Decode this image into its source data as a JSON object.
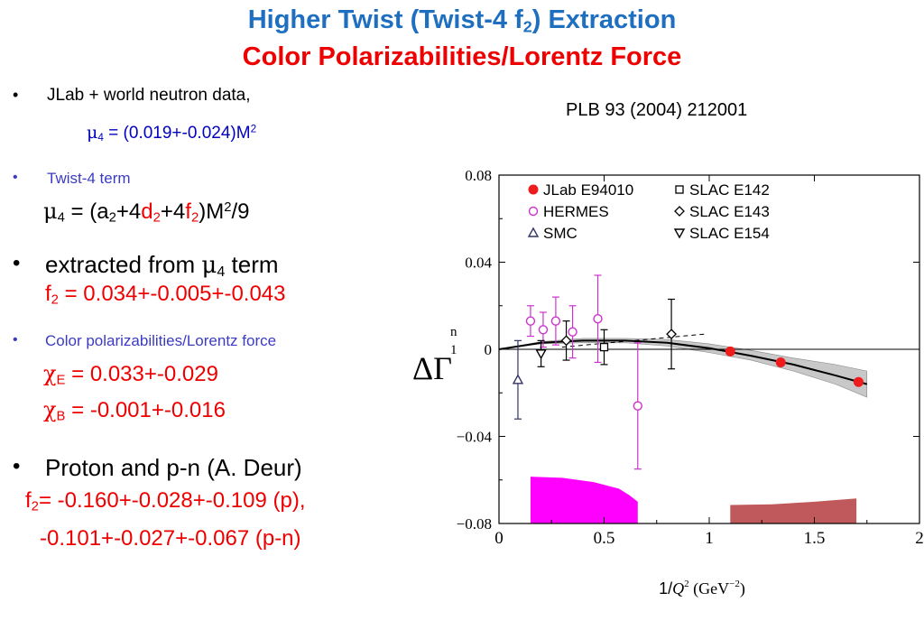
{
  "title": {
    "line1_pre": "Higher Twist (Twist-4 f",
    "line1_sub": "2",
    "line1_post": ") Extraction",
    "line2": "Color Polarizabilities/Lorentz Force"
  },
  "reference": "PLB 93 (2004) 212001",
  "bullets": {
    "b1": {
      "text": "JLab + world neutron data,",
      "mu_symbol": "μ",
      "mu_sub": "4",
      "mu_rest": " = (0.019+-0.024)M",
      "mu_sup": "2"
    },
    "b2": {
      "text": "Twist-4 term",
      "f_mu": "μ",
      "f_mu_sub": "4",
      "f_eq": " = (a",
      "f_a_sub": "2",
      "f_plus4": "+4",
      "f_d": "d",
      "f_d_sub": "2",
      "f_plus4b": "+4",
      "f_f": "f",
      "f_f_sub": "2",
      "f_close": ")M",
      "f_m_sup": "2",
      "f_div": "/9"
    },
    "b3": {
      "text_pre": "extracted from ",
      "mu": "μ",
      "mu_sub": "4",
      "text_post": " term",
      "f2_pre": "f",
      "f2_sub": "2",
      "f2_val": " = 0.034+-0.005+-0.043"
    },
    "b4": {
      "text": "Color polarizabilities/Lorentz force",
      "chiE_sym": "χ",
      "chiE_sub": "E",
      "chiE_val": " = 0.033+-0.029",
      "chiB_sym": "χ",
      "chiB_sub": "B",
      "chiB_val": " = -0.001+-0.016"
    },
    "b5": {
      "text": "Proton and p-n (A. Deur)",
      "f2_pre": "f",
      "f2_sub": "2",
      "f2_val": "= -0.160+-0.028+-0.109 (p),",
      "line2": "-0.101+-0.027+-0.067 (p-n)"
    }
  },
  "bullet_char": "•",
  "chart_data": {
    "type": "scatter",
    "xlabel_pre": "1/",
    "xlabel_q": "Q",
    "xlabel_q_sup": "2",
    "xlabel_unit": " (GeV",
    "xlabel_unit_sup": "−2",
    "xlabel_close": ")",
    "ylabel": "ΔΓ",
    "ylabel_sup": "n",
    "ylabel_sub": "1",
    "xlim": [
      0,
      2
    ],
    "ylim": [
      -0.08,
      0.08
    ],
    "xticks": [
      0,
      0.5,
      1,
      1.5,
      2
    ],
    "xtick_labels": [
      "0",
      "0.5",
      "1",
      "1.5",
      "2"
    ],
    "yticks": [
      0.08,
      0.04,
      0,
      -0.04,
      -0.08
    ],
    "ytick_labels": [
      "0.08",
      "0.04",
      "0",
      "−0.04",
      "−0.08"
    ],
    "legend_placement": "top-left",
    "series": [
      {
        "name": "JLab E94010",
        "marker": "filled-circle",
        "color": "#ee1c1c",
        "points": [
          [
            1.1,
            -0.001,
            0
          ],
          [
            1.34,
            -0.006,
            0
          ],
          [
            1.71,
            -0.015,
            0
          ]
        ]
      },
      {
        "name": "HERMES",
        "marker": "open-circle",
        "color": "#cc33cc",
        "points": [
          [
            0.15,
            0.013,
            0.007
          ],
          [
            0.21,
            0.009,
            0.008
          ],
          [
            0.27,
            0.013,
            0.011
          ],
          [
            0.35,
            0.008,
            0.012
          ],
          [
            0.47,
            0.014,
            0.02
          ],
          [
            0.66,
            -0.026,
            0.029
          ]
        ]
      },
      {
        "name": "SMC",
        "marker": "open-triangle-up",
        "color": "#333366",
        "points": [
          [
            0.09,
            -0.014,
            0.018
          ]
        ]
      },
      {
        "name": "SLAC E142",
        "marker": "open-square",
        "color": "#000000",
        "points": [
          [
            0.5,
            0.001,
            0.008
          ]
        ]
      },
      {
        "name": "SLAC E143",
        "marker": "open-diamond",
        "color": "#000000",
        "points": [
          [
            0.32,
            0.004,
            0.009
          ],
          [
            0.82,
            0.007,
            0.016
          ]
        ]
      },
      {
        "name": "SLAC E154",
        "marker": "open-triangle-down",
        "color": "#000000",
        "points": [
          [
            0.2,
            -0.002,
            0.006
          ]
        ]
      }
    ],
    "fit_curve": {
      "x": [
        0,
        0.2,
        0.4,
        0.6,
        0.8,
        1.0,
        1.2,
        1.4,
        1.6,
        1.75
      ],
      "y": [
        0,
        0.003,
        0.004,
        0.004,
        0.003,
        0.0005,
        -0.003,
        -0.007,
        -0.012,
        -0.016
      ]
    },
    "fit_band": {
      "x": [
        0,
        0.2,
        0.4,
        0.6,
        0.8,
        1.0,
        1.2,
        1.4,
        1.6,
        1.75
      ],
      "upper": [
        0,
        0.0035,
        0.005,
        0.005,
        0.0045,
        0.0025,
        -0.0005,
        -0.004,
        -0.007,
        -0.01
      ],
      "lower": [
        0,
        0.0025,
        0.003,
        0.003,
        0.0015,
        -0.0015,
        -0.005,
        -0.01,
        -0.016,
        -0.022
      ]
    },
    "dashed_line": {
      "x": [
        0.3,
        0.98
      ],
      "y": [
        0.001,
        0.007
      ]
    },
    "systematic_bands": [
      {
        "color": "#ff00ff",
        "x": [
          0.15,
          0.3,
          0.45,
          0.57,
          0.62,
          0.66
        ],
        "top": [
          -0.0585,
          -0.059,
          -0.061,
          -0.064,
          -0.067,
          -0.07
        ],
        "bottom": -0.08
      },
      {
        "color": "#c0595b",
        "x": [
          1.1,
          1.3,
          1.5,
          1.7
        ],
        "top": [
          -0.0715,
          -0.0712,
          -0.07,
          -0.0685
        ],
        "bottom": -0.08
      }
    ]
  }
}
